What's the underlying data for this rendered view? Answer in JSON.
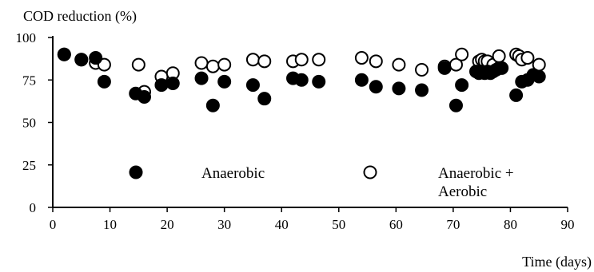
{
  "chart_data": {
    "type": "scatter",
    "ylabel": "COD reduction (%)",
    "xlabel": "Time (days)",
    "xlim": [
      0,
      90
    ],
    "ylim": [
      0,
      100
    ],
    "xticks": [
      "0",
      "10",
      "20",
      "30",
      "40",
      "50",
      "60",
      "70",
      "80",
      "90"
    ],
    "yticks": [
      "0",
      "25",
      "50",
      "75",
      "100"
    ],
    "grid": false,
    "legend_position": "inside-bottom",
    "series": [
      {
        "name": "Anaerobic",
        "marker": "filled-circle",
        "color": "#000000",
        "points": [
          [
            2,
            90
          ],
          [
            5,
            87
          ],
          [
            7.5,
            88
          ],
          [
            9,
            74
          ],
          [
            14.5,
            67
          ],
          [
            16,
            65
          ],
          [
            19,
            72
          ],
          [
            21,
            73
          ],
          [
            26,
            76
          ],
          [
            28,
            60
          ],
          [
            30,
            74
          ],
          [
            35,
            72
          ],
          [
            37,
            64
          ],
          [
            42,
            76
          ],
          [
            43.5,
            75
          ],
          [
            46.5,
            74
          ],
          [
            54,
            75
          ],
          [
            56.5,
            71
          ],
          [
            60.5,
            70
          ],
          [
            64.5,
            69
          ],
          [
            68.5,
            82
          ],
          [
            70.5,
            60
          ],
          [
            71.5,
            72
          ],
          [
            74,
            80
          ],
          [
            74.5,
            79
          ],
          [
            75,
            80
          ],
          [
            75.5,
            79
          ],
          [
            76,
            80
          ],
          [
            76.5,
            79
          ],
          [
            77,
            80
          ],
          [
            77.5,
            81
          ],
          [
            78,
            82
          ],
          [
            78.5,
            82
          ],
          [
            81,
            66
          ],
          [
            82,
            74
          ],
          [
            83,
            75
          ],
          [
            84,
            78
          ],
          [
            85,
            77
          ]
        ]
      },
      {
        "name": "Anaerobic + Aerobic",
        "marker": "open-circle",
        "color": "#000000",
        "points": [
          [
            2,
            90
          ],
          [
            5,
            87
          ],
          [
            7.5,
            85
          ],
          [
            9,
            84
          ],
          [
            15,
            84
          ],
          [
            16,
            68
          ],
          [
            19,
            77
          ],
          [
            21,
            79
          ],
          [
            26,
            85
          ],
          [
            28,
            83
          ],
          [
            30,
            84
          ],
          [
            35,
            87
          ],
          [
            37,
            86
          ],
          [
            42,
            86
          ],
          [
            43.5,
            87
          ],
          [
            46.5,
            87
          ],
          [
            54,
            88
          ],
          [
            56.5,
            86
          ],
          [
            60.5,
            84
          ],
          [
            64.5,
            81
          ],
          [
            68.5,
            83
          ],
          [
            70.5,
            84
          ],
          [
            71.5,
            90
          ],
          [
            74.5,
            86
          ],
          [
            75,
            87
          ],
          [
            75.5,
            86
          ],
          [
            76,
            86
          ],
          [
            77,
            84
          ],
          [
            78,
            89
          ],
          [
            81,
            90
          ],
          [
            81.5,
            89
          ],
          [
            82,
            87
          ],
          [
            83,
            88
          ],
          [
            85,
            84
          ]
        ]
      }
    ],
    "legend": [
      {
        "label": "Anaerobic",
        "marker": "filled-circle"
      },
      {
        "label_lines": [
          "Anaerobic +",
          "Aerobic"
        ],
        "marker": "open-circle"
      }
    ]
  }
}
